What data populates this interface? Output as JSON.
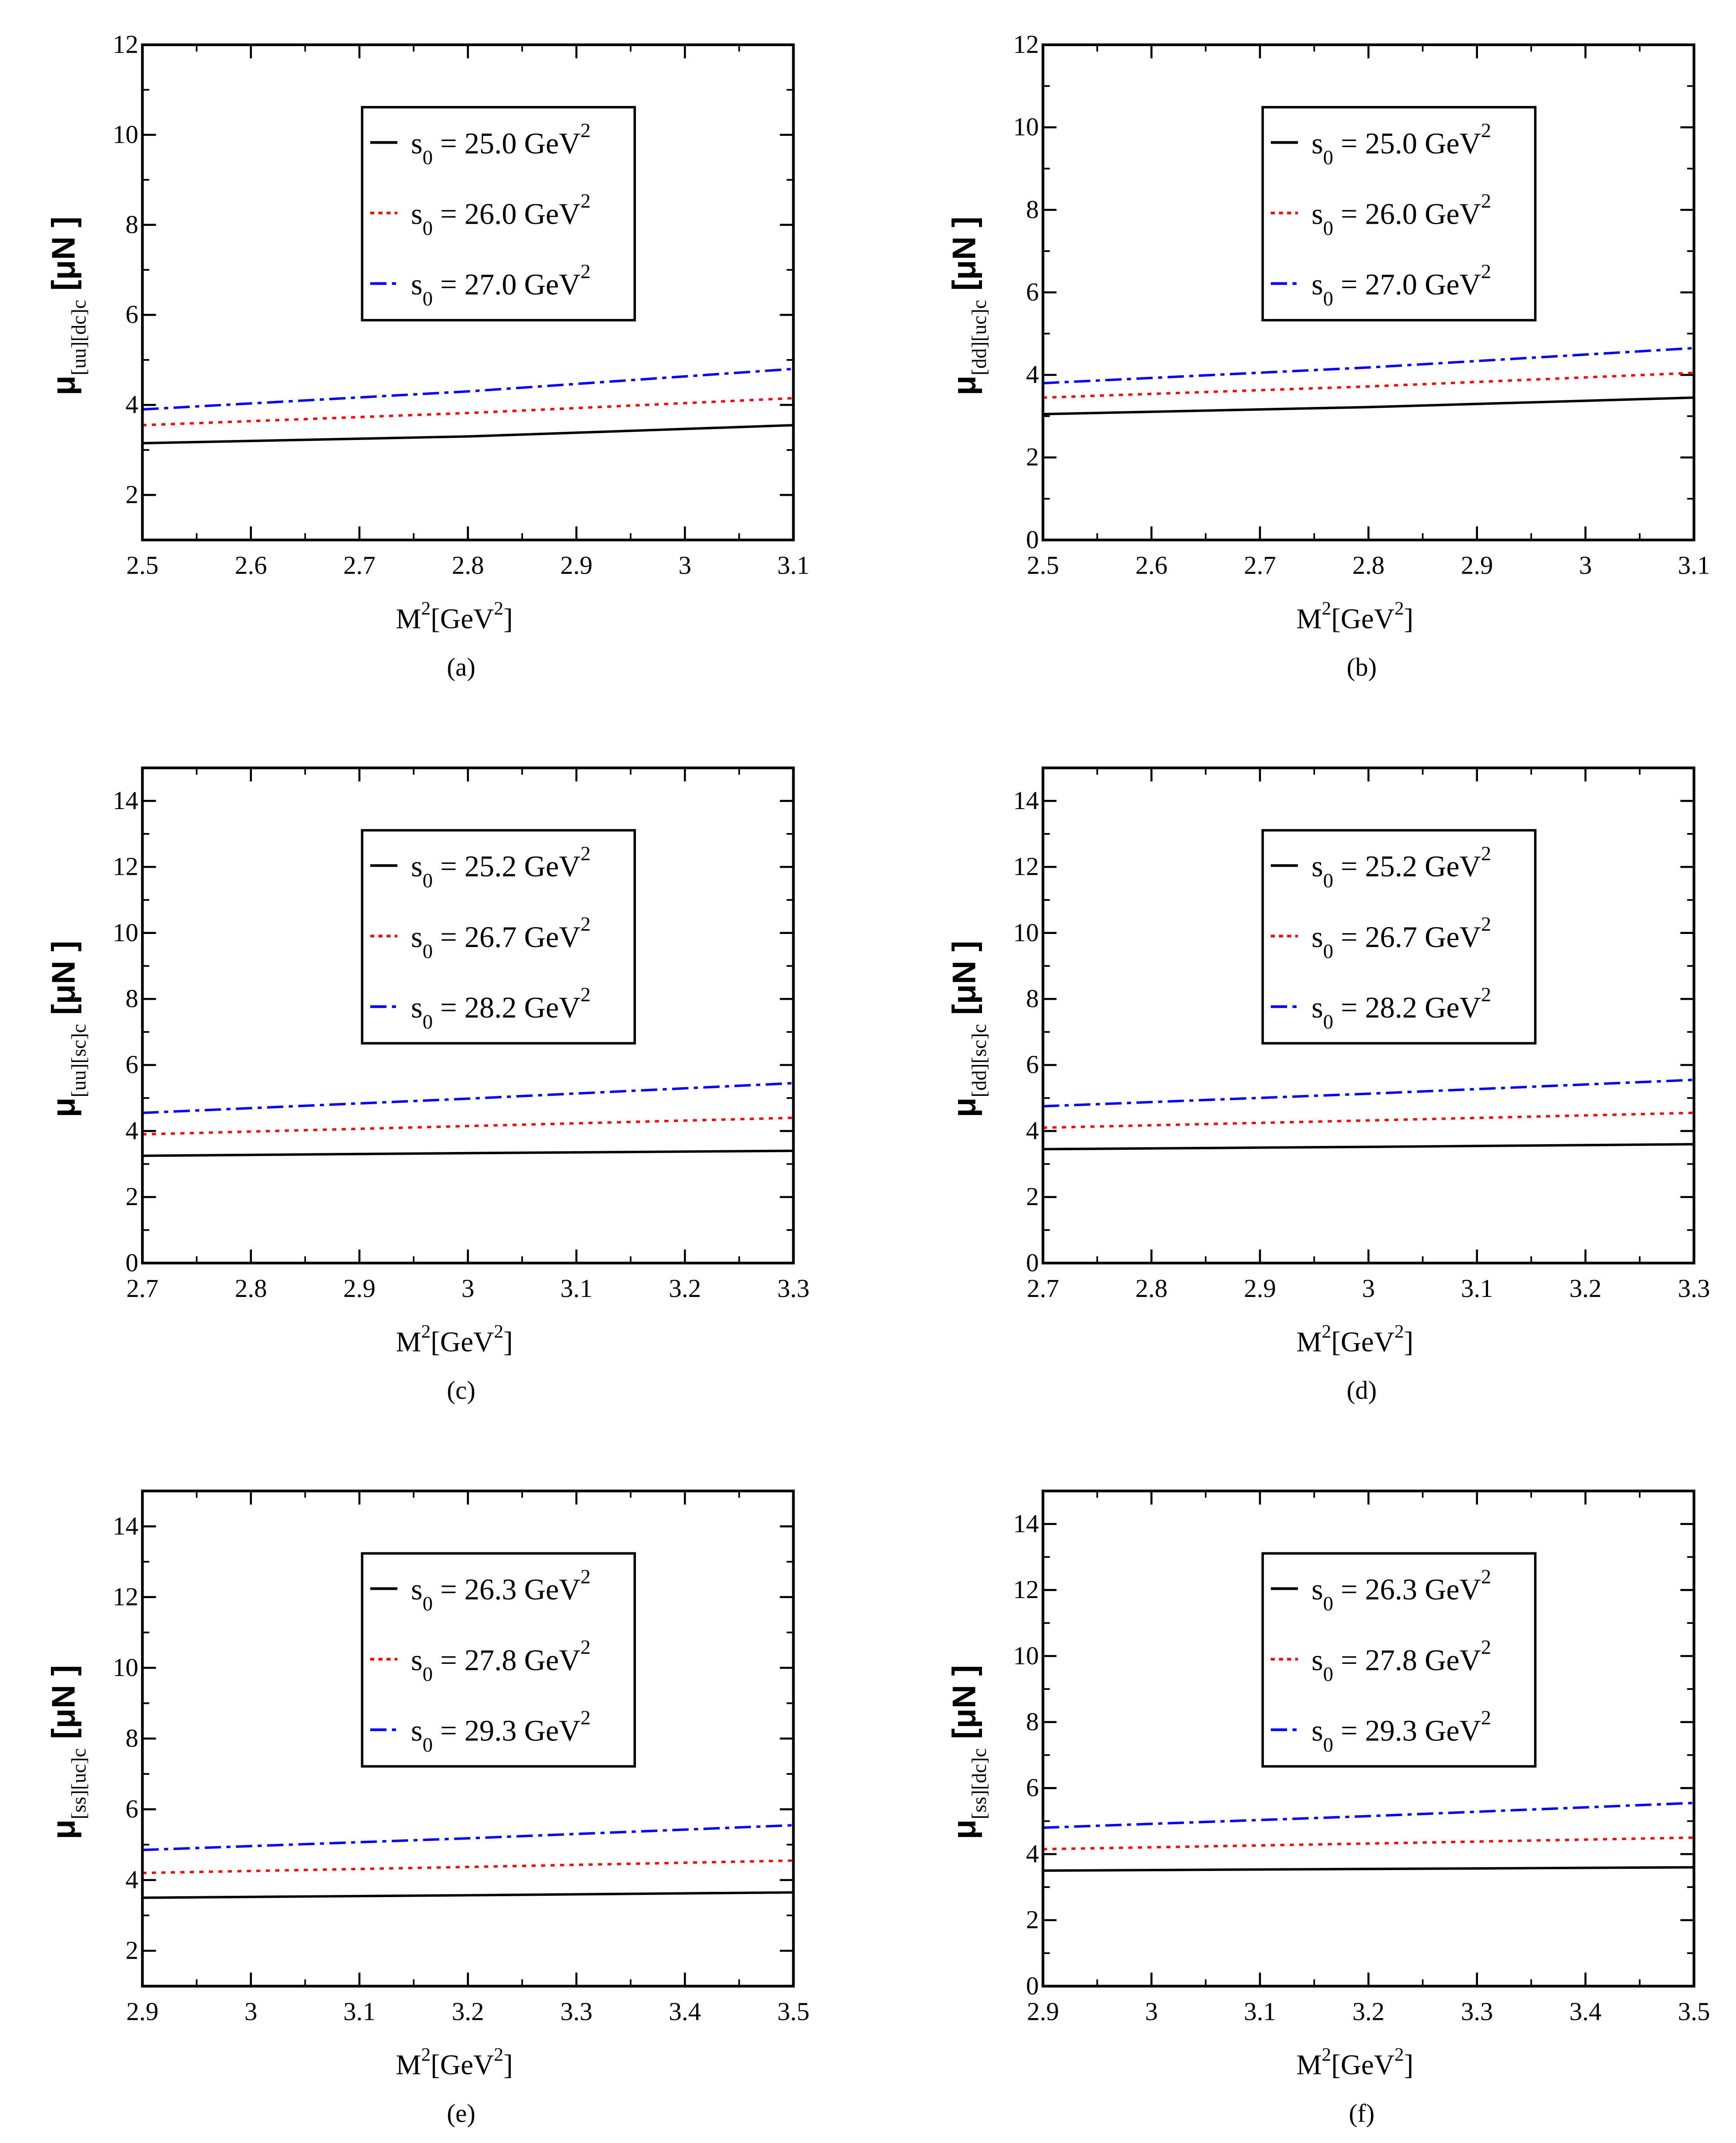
{
  "chart_data": [
    {
      "type": "line",
      "panel": "(a)",
      "ylabel_sub": "[uu][dc]c",
      "ylabel_main": "μ",
      "ylabel_unit": "[μN ]",
      "xlabel": "M²[GeV²]",
      "xlim": [
        2.5,
        3.1
      ],
      "ylim": [
        1,
        12
      ],
      "xticks": [
        "2.5",
        "2.6",
        "2.7",
        "2.8",
        "2.9",
        "3",
        "3.1"
      ],
      "yticks": [
        "2",
        "4",
        "6",
        "8",
        "10",
        "12"
      ],
      "legend_position": "top-center",
      "x": [
        2.5,
        2.8,
        3.1
      ],
      "series": [
        {
          "name": "s0 = 25.0  GeV2",
          "label_value": "25.0",
          "style": "solid",
          "color": "#000000",
          "values": [
            3.15,
            3.3,
            3.55
          ]
        },
        {
          "name": "s0 = 26.0 GeV2",
          "label_value": "26.0",
          "style": "dotted",
          "color": "#ff0000",
          "values": [
            3.55,
            3.82,
            4.15
          ]
        },
        {
          "name": "s0 = 27.0 GeV2",
          "label_value": "27.0",
          "style": "dashdot",
          "color": "#0000ff",
          "values": [
            3.9,
            4.3,
            4.8
          ]
        }
      ]
    },
    {
      "type": "line",
      "panel": "(b)",
      "ylabel_sub": "[dd][uc]c",
      "ylabel_main": "μ",
      "ylabel_unit": "[μN ]",
      "xlabel": "M²[GeV²]",
      "xlim": [
        2.5,
        3.1
      ],
      "ylim": [
        0,
        12
      ],
      "xticks": [
        "2.5",
        "2.6",
        "2.7",
        "2.8",
        "2.9",
        "3",
        "3.1"
      ],
      "yticks": [
        "0",
        "2",
        "4",
        "6",
        "8",
        "10",
        "12"
      ],
      "legend_position": "top-right",
      "x": [
        2.5,
        2.8,
        3.1
      ],
      "series": [
        {
          "name": "s0 = 25.0  GeV2",
          "label_value": "25.0",
          "style": "solid",
          "color": "#000000",
          "values": [
            3.05,
            3.22,
            3.45
          ]
        },
        {
          "name": "s0 = 26.0 GeV2",
          "label_value": "26.0",
          "style": "dotted",
          "color": "#ff0000",
          "values": [
            3.45,
            3.72,
            4.05
          ]
        },
        {
          "name": "s0 = 27.0 GeV2",
          "label_value": "27.0",
          "style": "dashdot",
          "color": "#0000ff",
          "values": [
            3.8,
            4.18,
            4.65
          ]
        }
      ]
    },
    {
      "type": "line",
      "panel": "(c)",
      "ylabel_sub": "[uu][sc]c",
      "ylabel_main": "μ",
      "ylabel_unit": "[μN ]",
      "xlabel": "M²[GeV²]",
      "xlim": [
        2.7,
        3.3
      ],
      "ylim": [
        0,
        15
      ],
      "xticks": [
        "2.7",
        "2.8",
        "2.9",
        "3",
        "3.1",
        "3.2",
        "3.3"
      ],
      "yticks": [
        "0",
        "2",
        "4",
        "6",
        "8",
        "10",
        "12",
        "14"
      ],
      "legend_position": "top-center",
      "x": [
        2.7,
        3.0,
        3.3
      ],
      "series": [
        {
          "name": "s0 = 25.2  GeV2",
          "label_value": "25.2",
          "style": "solid",
          "color": "#000000",
          "values": [
            3.25,
            3.33,
            3.4
          ]
        },
        {
          "name": "s0 = 26.7 GeV2",
          "label_value": "26.7",
          "style": "dotted",
          "color": "#ff0000",
          "values": [
            3.9,
            4.15,
            4.4
          ]
        },
        {
          "name": "s0 = 28.2 GeV2",
          "label_value": "28.2",
          "style": "dashdot",
          "color": "#0000ff",
          "values": [
            4.55,
            4.98,
            5.45
          ]
        }
      ]
    },
    {
      "type": "line",
      "panel": "(d)",
      "ylabel_sub": "[dd][sc]c",
      "ylabel_main": "μ",
      "ylabel_unit": "[μN ]",
      "xlabel": "M²[GeV²]",
      "xlim": [
        2.7,
        3.3
      ],
      "ylim": [
        0,
        15
      ],
      "xticks": [
        "2.7",
        "2.8",
        "2.9",
        "3",
        "3.1",
        "3.2",
        "3.3"
      ],
      "yticks": [
        "0",
        "2",
        "4",
        "6",
        "8",
        "10",
        "12",
        "14"
      ],
      "legend_position": "top-right",
      "x": [
        2.7,
        3.0,
        3.3
      ],
      "series": [
        {
          "name": "s0 = 25.2  GeV2",
          "label_value": "25.2",
          "style": "solid",
          "color": "#000000",
          "values": [
            3.45,
            3.52,
            3.6
          ]
        },
        {
          "name": "s0 = 26.7 GeV2",
          "label_value": "26.7",
          "style": "dotted",
          "color": "#ff0000",
          "values": [
            4.1,
            4.32,
            4.55
          ]
        },
        {
          "name": "s0 = 28.2 GeV2",
          "label_value": "28.2",
          "style": "dashdot",
          "color": "#0000ff",
          "values": [
            4.75,
            5.13,
            5.55
          ]
        }
      ]
    },
    {
      "type": "line",
      "panel": "(e)",
      "ylabel_sub": "[ss][uc]c",
      "ylabel_main": "μ",
      "ylabel_unit": "[μN ]",
      "xlabel": "M²[GeV²]",
      "xlim": [
        2.9,
        3.5
      ],
      "ylim": [
        1,
        15
      ],
      "xticks": [
        "2.9",
        "3",
        "3.1",
        "3.2",
        "3.3",
        "3.4",
        "3.5"
      ],
      "yticks": [
        "2",
        "4",
        "6",
        "8",
        "10",
        "12",
        "14"
      ],
      "legend_position": "top-center",
      "x": [
        2.9,
        3.2,
        3.5
      ],
      "series": [
        {
          "name": "s0 = 26.3  GeV2",
          "label_value": "26.3",
          "style": "solid",
          "color": "#000000",
          "values": [
            3.5,
            3.57,
            3.65
          ]
        },
        {
          "name": "s0 = 27.8 GeV2",
          "label_value": "27.8",
          "style": "dotted",
          "color": "#ff0000",
          "values": [
            4.2,
            4.37,
            4.55
          ]
        },
        {
          "name": "s0 = 29.3 GeV2",
          "label_value": "29.3",
          "style": "dashdot",
          "color": "#0000ff",
          "values": [
            4.85,
            5.18,
            5.55
          ]
        }
      ]
    },
    {
      "type": "line",
      "panel": "(f)",
      "ylabel_sub": "[ss][dc]c",
      "ylabel_main": "μ",
      "ylabel_unit": "[μN ]",
      "xlabel": "M²[GeV²]",
      "xlim": [
        2.9,
        3.5
      ],
      "ylim": [
        0,
        15
      ],
      "xticks": [
        "2.9",
        "3",
        "3.1",
        "3.2",
        "3.3",
        "3.4",
        "3.5"
      ],
      "yticks": [
        "0",
        "2",
        "4",
        "6",
        "8",
        "10",
        "12",
        "14"
      ],
      "legend_position": "top-right",
      "x": [
        2.9,
        3.2,
        3.5
      ],
      "series": [
        {
          "name": "s0 = 26.3  GeV2",
          "label_value": "26.3",
          "style": "solid",
          "color": "#000000",
          "values": [
            3.5,
            3.55,
            3.6
          ]
        },
        {
          "name": "s0 = 27.8 GeV2",
          "label_value": "27.8",
          "style": "dotted",
          "color": "#ff0000",
          "values": [
            4.15,
            4.32,
            4.5
          ]
        },
        {
          "name": "s0 = 29.3 GeV2",
          "label_value": "29.3",
          "style": "dashdot",
          "color": "#0000ff",
          "values": [
            4.8,
            5.15,
            5.55
          ]
        }
      ]
    }
  ]
}
